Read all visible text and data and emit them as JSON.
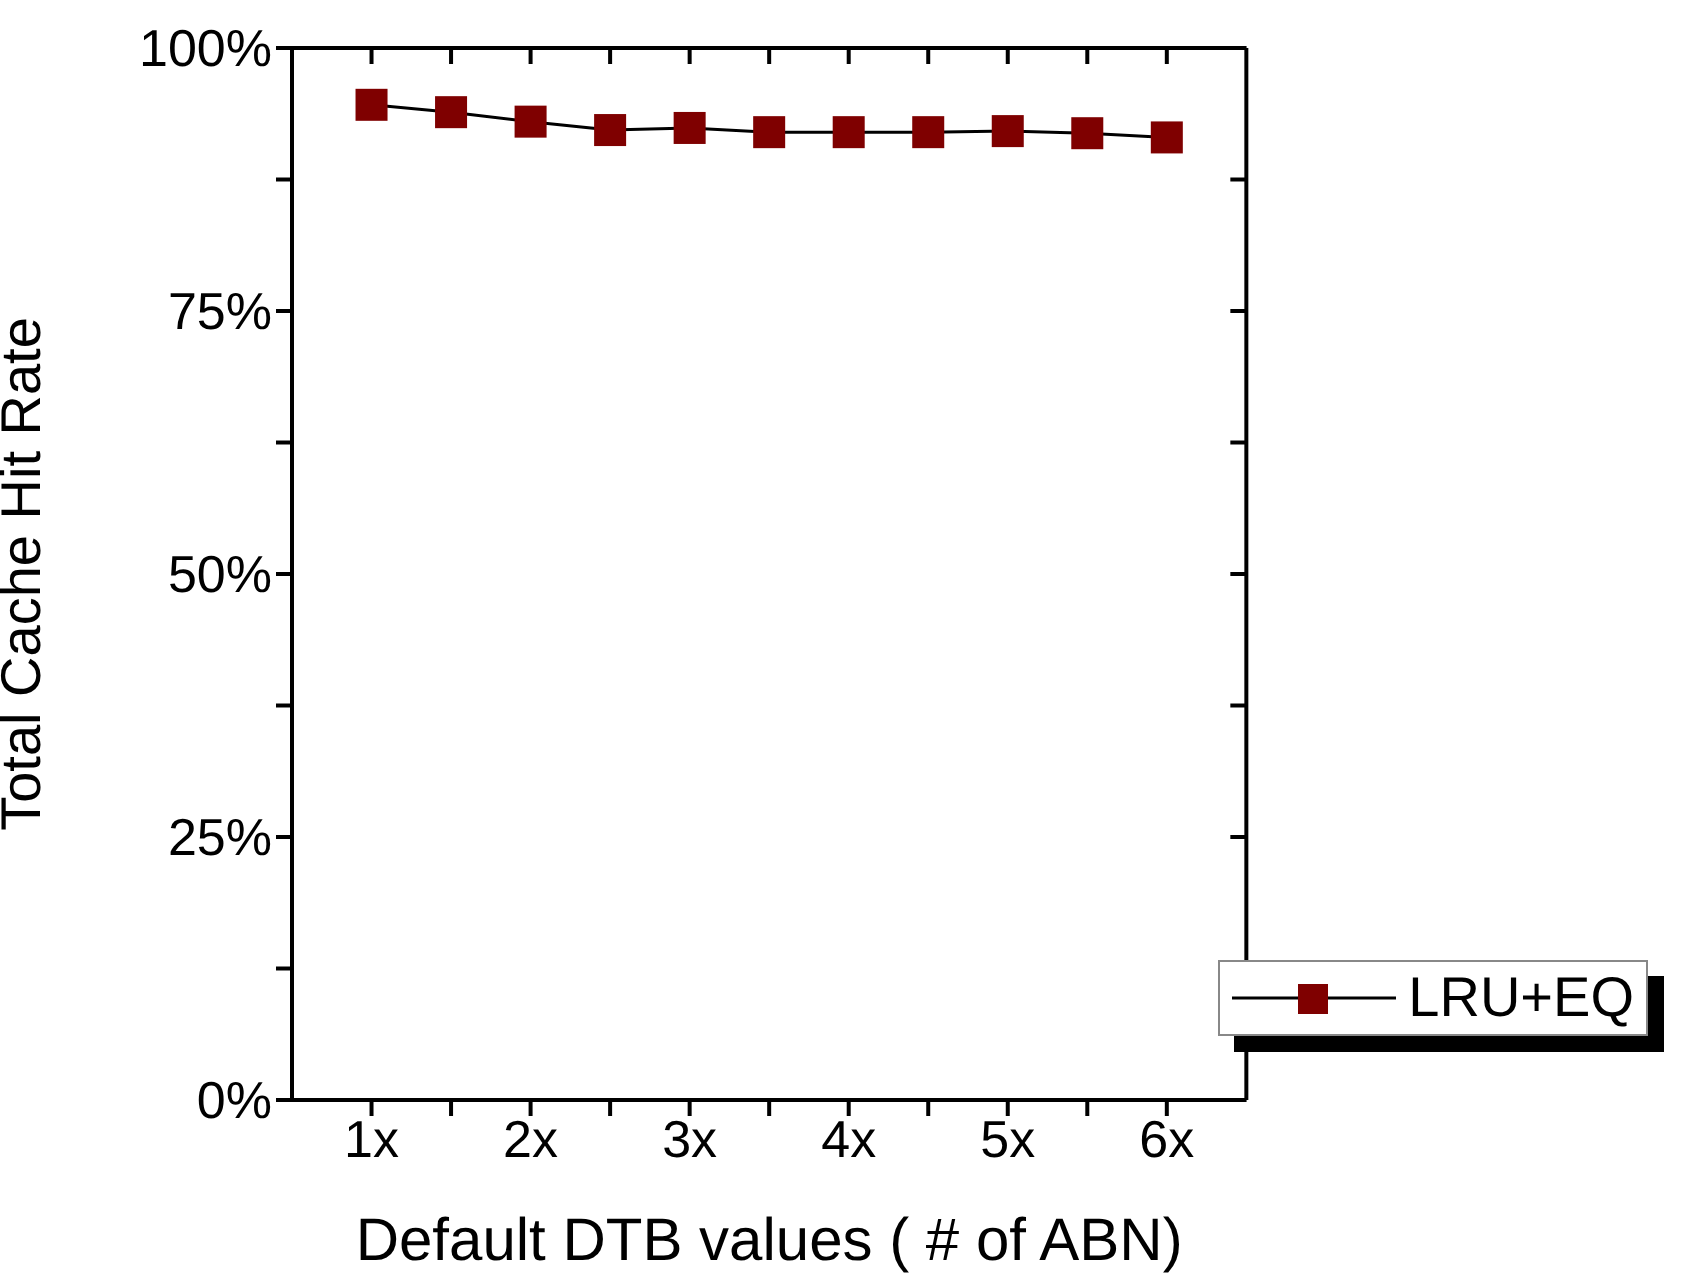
{
  "chart_data": {
    "type": "line",
    "xlabel": "Default DTB values ( # of ABN)",
    "ylabel": "Total Cache Hit Rate",
    "x": [
      1,
      1.5,
      2,
      2.5,
      3,
      3.5,
      4,
      4.5,
      5,
      5.5,
      6
    ],
    "series": [
      {
        "name": "LRU+EQ",
        "color": "#7f0000",
        "values": [
          94.6,
          93.9,
          93.0,
          92.2,
          92.4,
          92.0,
          92.0,
          92.0,
          92.1,
          91.9,
          91.5
        ]
      }
    ],
    "xlim": [
      0.5,
      6.5
    ],
    "xticks": [
      {
        "value": 1,
        "label": "1x"
      },
      {
        "value": 1.5,
        "label": null
      },
      {
        "value": 2,
        "label": "2x"
      },
      {
        "value": 2.5,
        "label": null
      },
      {
        "value": 3,
        "label": "3x"
      },
      {
        "value": 3.5,
        "label": null
      },
      {
        "value": 4,
        "label": "4x"
      },
      {
        "value": 4.5,
        "label": null
      },
      {
        "value": 5,
        "label": "5x"
      },
      {
        "value": 5.5,
        "label": null
      },
      {
        "value": 6,
        "label": "6x"
      }
    ],
    "ylim": [
      0,
      100
    ],
    "yticks": [
      {
        "value": 0,
        "label": "0%"
      },
      {
        "value": 12.5,
        "label": null
      },
      {
        "value": 25,
        "label": "25%"
      },
      {
        "value": 37.5,
        "label": null
      },
      {
        "value": 50,
        "label": "50%"
      },
      {
        "value": 62.5,
        "label": null
      },
      {
        "value": 75,
        "label": "75%"
      },
      {
        "value": 87.5,
        "label": null
      },
      {
        "value": 100,
        "label": "100%"
      }
    ],
    "grid": false,
    "legend": "bottom right",
    "marker": "square",
    "line_style": "solid"
  }
}
